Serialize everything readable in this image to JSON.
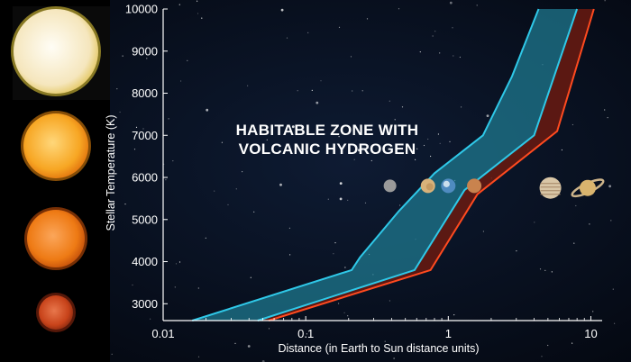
{
  "chart_data": {
    "type": "area",
    "title_lines": [
      "HABITABLE ZONE WITH",
      "VOLCANIC HYDROGEN"
    ],
    "xlabel": "Distance (in Earth to Sun distance units)",
    "ylabel": "Stellar Temperature (K)",
    "x_scale": "log",
    "xlim": [
      0.01,
      12
    ],
    "ylim": [
      2600,
      10000
    ],
    "x_ticks": [
      {
        "value": 0.01,
        "label": "0.01"
      },
      {
        "value": 0.1,
        "label": "0.1"
      },
      {
        "value": 1,
        "label": "1"
      },
      {
        "value": 10,
        "label": "10"
      }
    ],
    "y_ticks": [
      {
        "value": 3000,
        "label": "3000"
      },
      {
        "value": 4000,
        "label": "4000"
      },
      {
        "value": 5000,
        "label": "5000"
      },
      {
        "value": 6000,
        "label": "6000"
      },
      {
        "value": 7000,
        "label": "7000"
      },
      {
        "value": 8000,
        "label": "8000"
      },
      {
        "value": 9000,
        "label": "9000"
      },
      {
        "value": 10000,
        "label": "10000"
      }
    ],
    "series": [
      {
        "role": "habitable-zone",
        "color": "#2fc8e8",
        "fill": "#1f7f96",
        "inner_edge": [
          {
            "x": 0.016,
            "y": 2600
          },
          {
            "x": 0.21,
            "y": 3800
          },
          {
            "x": 0.24,
            "y": 4100
          },
          {
            "x": 0.45,
            "y": 5200
          },
          {
            "x": 0.8,
            "y": 6100
          },
          {
            "x": 1.75,
            "y": 7000
          },
          {
            "x": 2.8,
            "y": 8400
          },
          {
            "x": 4.3,
            "y": 10000
          }
        ],
        "outer_edge": [
          {
            "x": 0.046,
            "y": 2600
          },
          {
            "x": 0.58,
            "y": 3800
          },
          {
            "x": 1.3,
            "y": 5700
          },
          {
            "x": 4.0,
            "y": 7000
          },
          {
            "x": 8.0,
            "y": 10000
          }
        ]
      },
      {
        "role": "outer-edge-band",
        "color": "#ff4a1f",
        "fill": "#6a1a10",
        "outer_edge": [
          {
            "x": 0.055,
            "y": 2600
          },
          {
            "x": 0.75,
            "y": 3800
          },
          {
            "x": 1.6,
            "y": 5600
          },
          {
            "x": 5.8,
            "y": 7100
          },
          {
            "x": 10.5,
            "y": 10000
          }
        ]
      }
    ],
    "planets": [
      {
        "name": "mercury-icon",
        "x": 0.39,
        "y": 5800,
        "r": 7,
        "color": "#9a9a9a"
      },
      {
        "name": "venus-icon",
        "x": 0.72,
        "y": 5800,
        "r": 8,
        "color": "#d8b27a"
      },
      {
        "name": "earth-icon",
        "x": 1.0,
        "y": 5800,
        "r": 8,
        "color": "#4f8bc0"
      },
      {
        "name": "mars-icon",
        "x": 1.52,
        "y": 5800,
        "r": 8,
        "color": "#c9834e"
      },
      {
        "name": "jupiter-icon",
        "x": 5.2,
        "y": 5750,
        "r": 12,
        "color": "#d9c6a6"
      },
      {
        "name": "saturn-icon",
        "x": 9.5,
        "y": 5750,
        "r": 9,
        "color": "#d9b46e"
      }
    ],
    "stars": [
      {
        "name": "white-star-icon",
        "color": "#f3e3b5",
        "glow": "#f1d53a",
        "cy": 57,
        "r": 47
      },
      {
        "name": "yellow-star-icon",
        "color": "#f7a623",
        "glow": "#f28d0c",
        "cy": 162,
        "r": 36
      },
      {
        "name": "orange-star-icon",
        "color": "#ee7a14",
        "glow": "#d8560a",
        "cy": 265,
        "r": 32
      },
      {
        "name": "red-star-icon",
        "color": "#d0491b",
        "glow": "#9c2b10",
        "cy": 347,
        "r": 19
      }
    ]
  }
}
